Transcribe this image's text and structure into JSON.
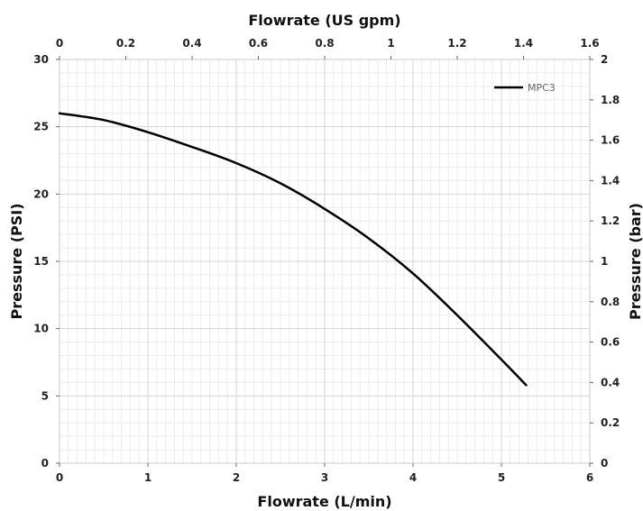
{
  "chart_data": {
    "type": "line",
    "title": "",
    "xlabel": "Flowrate (L/min)",
    "x2label": "Flowrate (US gpm)",
    "ylabel": "Pressure (PSI)",
    "y2label": "Pressure (bar)",
    "xlim": [
      0,
      6
    ],
    "ylim": [
      0,
      30
    ],
    "x2lim": [
      0,
      1.6
    ],
    "y2lim": [
      0,
      2
    ],
    "xticks": [
      "0",
      "1",
      "2",
      "3",
      "4",
      "5",
      "6"
    ],
    "yticks": [
      "0",
      "5",
      "10",
      "15",
      "20",
      "25",
      "30"
    ],
    "x2ticks": [
      "0",
      "0.2",
      "0.4",
      "0.6",
      "0.8",
      "1",
      "1.2",
      "1.4",
      "1.6"
    ],
    "y2ticks": [
      "0",
      "0.2",
      "0.4",
      "0.6",
      "0.8",
      "1",
      "1.2",
      "1.4",
      "1.6",
      "1.8",
      "2"
    ],
    "grid": true,
    "legend_position": "top-right",
    "series": [
      {
        "name": "MPC3",
        "color": "#000000",
        "x": [
          0,
          0.5,
          1,
          1.5,
          2,
          2.5,
          3,
          3.5,
          4,
          4.5,
          5,
          5.28
        ],
        "y": [
          26,
          25.5,
          24.6,
          23.5,
          22.3,
          20.8,
          18.9,
          16.7,
          14.1,
          11.0,
          7.7,
          5.8
        ]
      }
    ]
  }
}
